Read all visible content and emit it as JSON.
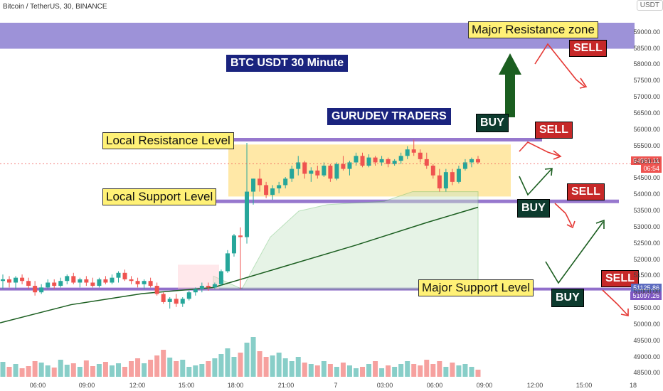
{
  "header": {
    "symbol": "Bitcoin / TetherUS, 30, BINANCE",
    "currency": "USDT"
  },
  "annotations": {
    "title": "BTC USDT 30 Minute",
    "brand": "GURUDEV TRADERS",
    "major_resistance": "Major Resistance zone",
    "local_resistance": "Local Resistance Level",
    "local_support": "Local Support Level",
    "major_support": "Major Support Level",
    "buy": "BUY",
    "sell": "SELL"
  },
  "price_tags": {
    "current": "54961.11",
    "countdown": "06:54",
    "major_support_a": "51125.86",
    "major_support_b": "51097.26"
  },
  "colors": {
    "up": "#26a69a",
    "down": "#ef5350",
    "zone": "#8c7fd1",
    "level": "#7e57c2",
    "box": "#ffe08a",
    "ma": "#1b5e20",
    "arrow_buy": "#1b5e20",
    "arrow_sell": "#e53935",
    "cloud": "#c8e6c9"
  },
  "chart_data": {
    "type": "candlestick",
    "symbol": "BTCUSDT",
    "interval": "30",
    "ylim": [
      48400,
      60000
    ],
    "y_ticks": [
      "59000.00",
      "58500.00",
      "58000.00",
      "57500.00",
      "57000.00",
      "56500.00",
      "56000.00",
      "55500.00",
      "55000.00",
      "54500.00",
      "54000.00",
      "53500.00",
      "53000.00",
      "52500.00",
      "52000.00",
      "51500.00",
      "51000.00",
      "50500.00",
      "50000.00",
      "49500.00",
      "49000.00",
      "48500.00"
    ],
    "x_ticks": [
      "06:00",
      "09:00",
      "12:00",
      "15:00",
      "18:00",
      "21:00",
      "7",
      "03:00",
      "06:00",
      "09:00",
      "12:00",
      "15:00",
      "18"
    ],
    "levels": {
      "major_resistance_zone": [
        58500,
        59300
      ],
      "local_resistance": 55700,
      "local_support": 53800,
      "major_support": 51100
    },
    "candles": [
      [
        51350,
        51550,
        51100,
        51400
      ],
      [
        51400,
        51500,
        51150,
        51300
      ],
      [
        51300,
        51500,
        51100,
        51450
      ],
      [
        51450,
        51550,
        51250,
        51350
      ],
      [
        51350,
        51450,
        51100,
        51200
      ],
      [
        51200,
        51350,
        50900,
        51000
      ],
      [
        51000,
        51250,
        50950,
        51150
      ],
      [
        51150,
        51400,
        51100,
        51300
      ],
      [
        51300,
        51400,
        51100,
        51200
      ],
      [
        51200,
        51450,
        51150,
        51350
      ],
      [
        51350,
        51550,
        51250,
        51500
      ],
      [
        51500,
        51600,
        51250,
        51300
      ],
      [
        51300,
        51450,
        51150,
        51400
      ],
      [
        51400,
        51500,
        51200,
        51300
      ],
      [
        51300,
        51450,
        51150,
        51200
      ],
      [
        51200,
        51450,
        51150,
        51400
      ],
      [
        51400,
        51500,
        51250,
        51300
      ],
      [
        51300,
        51550,
        51250,
        51450
      ],
      [
        51450,
        51650,
        51300,
        51600
      ],
      [
        51600,
        51700,
        51350,
        51400
      ],
      [
        51400,
        51500,
        51250,
        51350
      ],
      [
        51350,
        51450,
        51150,
        51250
      ],
      [
        51250,
        51400,
        51100,
        51350
      ],
      [
        51350,
        51450,
        51150,
        51200
      ],
      [
        51200,
        51300,
        50900,
        50950
      ],
      [
        50950,
        51000,
        50650,
        50700
      ],
      [
        50700,
        50850,
        50500,
        50800
      ],
      [
        50800,
        50950,
        50550,
        50650
      ],
      [
        50650,
        50850,
        50550,
        50800
      ],
      [
        50800,
        51050,
        50750,
        51000
      ],
      [
        51000,
        51150,
        50900,
        51100
      ],
      [
        51100,
        51300,
        51000,
        51200
      ],
      [
        51200,
        51300,
        51050,
        51150
      ],
      [
        51150,
        51300,
        51100,
        51250
      ],
      [
        51250,
        51700,
        51200,
        51650
      ],
      [
        51650,
        52300,
        51600,
        52200
      ],
      [
        52200,
        52800,
        52100,
        52750
      ],
      [
        52750,
        53000,
        51100,
        52700
      ],
      [
        52700,
        55600,
        52500,
        54100
      ],
      [
        54100,
        54500,
        53700,
        54500
      ],
      [
        54500,
        54800,
        54100,
        54300
      ],
      [
        54300,
        54400,
        53900,
        54000
      ],
      [
        54000,
        54300,
        53850,
        54200
      ],
      [
        54200,
        54400,
        54050,
        54300
      ],
      [
        54300,
        54550,
        54200,
        54500
      ],
      [
        54500,
        54900,
        54400,
        54800
      ],
      [
        54800,
        55200,
        54600,
        55000
      ],
      [
        55000,
        55050,
        54500,
        54650
      ],
      [
        54650,
        54850,
        54400,
        54750
      ],
      [
        54750,
        54900,
        54500,
        54600
      ],
      [
        54600,
        55000,
        54550,
        54900
      ],
      [
        54900,
        54950,
        54400,
        54500
      ],
      [
        54500,
        55000,
        54450,
        54950
      ],
      [
        54950,
        55200,
        54750,
        54800
      ],
      [
        54800,
        55050,
        54600,
        55000
      ],
      [
        55000,
        55300,
        54900,
        55200
      ],
      [
        55200,
        55300,
        54850,
        54900
      ],
      [
        54900,
        55250,
        54850,
        55150
      ],
      [
        55150,
        55200,
        54900,
        55000
      ],
      [
        55000,
        55200,
        54900,
        55100
      ],
      [
        55100,
        55150,
        54850,
        54950
      ],
      [
        54950,
        55100,
        54900,
        55050
      ],
      [
        55050,
        55300,
        54950,
        55200
      ],
      [
        55200,
        55500,
        55100,
        55400
      ],
      [
        55400,
        55700,
        55200,
        55300
      ],
      [
        55300,
        55400,
        55000,
        55100
      ],
      [
        55100,
        55300,
        54800,
        54900
      ],
      [
        54900,
        54950,
        54500,
        54600
      ],
      [
        54600,
        54800,
        54100,
        54200
      ],
      [
        54200,
        54800,
        54100,
        54700
      ],
      [
        54700,
        54800,
        54300,
        54400
      ],
      [
        54400,
        54900,
        54350,
        54800
      ],
      [
        54800,
        55100,
        54750,
        55000
      ],
      [
        55000,
        55150,
        54850,
        55100
      ],
      [
        55100,
        55200,
        54950,
        55000
      ]
    ],
    "volume": [
      21,
      14,
      18,
      12,
      15,
      22,
      20,
      16,
      13,
      24,
      17,
      19,
      14,
      23,
      15,
      18,
      21,
      16,
      19,
      14,
      22,
      26,
      19,
      24,
      30,
      38,
      27,
      22,
      24,
      14,
      16,
      18,
      22,
      26,
      32,
      40,
      28,
      34,
      48,
      56,
      36,
      28,
      30,
      34,
      26,
      22,
      28,
      20,
      18,
      16,
      22,
      18,
      14,
      20,
      16,
      12,
      14,
      18,
      22,
      12,
      16,
      14,
      18,
      22,
      18,
      16,
      24,
      18,
      22,
      14,
      20,
      16,
      18,
      14,
      10
    ],
    "moving_average": [
      [
        0,
        50060
      ],
      [
        100,
        50620
      ],
      [
        200,
        50960
      ],
      [
        300,
        51150
      ],
      [
        400,
        51800
      ],
      [
        500,
        52450
      ],
      [
        600,
        53150
      ],
      [
        672,
        53620
      ]
    ],
    "cloud_upper": [
      [
        300,
        51500
      ],
      [
        340,
        51100
      ],
      [
        380,
        52700
      ],
      [
        420,
        53500
      ],
      [
        460,
        53700
      ],
      [
        500,
        53750
      ],
      [
        540,
        53800
      ],
      [
        580,
        54100
      ],
      [
        620,
        54100
      ],
      [
        672,
        54100
      ]
    ],
    "signals": [
      {
        "label": "BUY",
        "kind": "buy"
      },
      {
        "label": "SELL",
        "kind": "sell"
      },
      {
        "label": "BUY",
        "kind": "buy"
      },
      {
        "label": "SELL",
        "kind": "sell"
      },
      {
        "label": "BUY",
        "kind": "buy"
      },
      {
        "label": "SELL",
        "kind": "sell"
      },
      {
        "label": "SELL",
        "kind": "sell"
      }
    ]
  }
}
